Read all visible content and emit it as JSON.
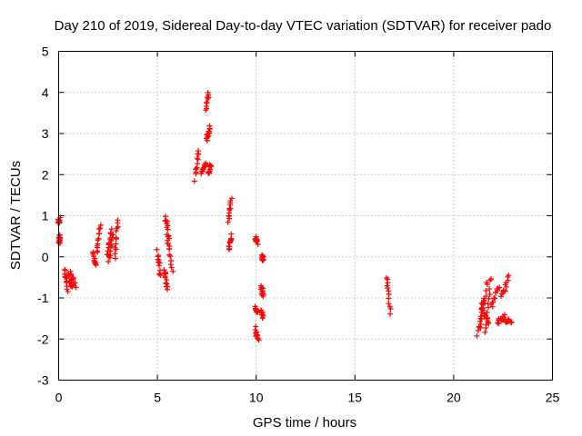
{
  "chart_data": {
    "type": "scatter",
    "title": "Day 210 of 2019, Sidereal Day-to-day VTEC variation (SDTVAR) for receiver pado",
    "xlabel": "GPS time / hours",
    "ylabel": "SDTVAR / TECUs",
    "xlim": [
      0,
      25
    ],
    "ylim": [
      -3,
      5
    ],
    "xticks": [
      0,
      5,
      10,
      15,
      20,
      25
    ],
    "yticks": [
      -3,
      -2,
      -1,
      0,
      1,
      2,
      3,
      4,
      5
    ],
    "grid": true,
    "marker": "+",
    "color": "#ff0000",
    "segments": [
      {
        "x0": 0.0,
        "x1": 0.05,
        "y0": 0.85,
        "y1": 0.9
      },
      {
        "x0": 0.02,
        "x1": 0.08,
        "y0": 0.35,
        "y1": 0.5
      },
      {
        "x0": 0.3,
        "x1": 0.45,
        "y0": -0.3,
        "y1": -0.8
      },
      {
        "x0": 0.45,
        "x1": 0.7,
        "y0": -0.45,
        "y1": -0.75
      },
      {
        "x0": 0.6,
        "x1": 0.85,
        "y0": -0.4,
        "y1": -0.7
      },
      {
        "x0": 1.75,
        "x1": 1.9,
        "y0": 0.15,
        "y1": -0.25
      },
      {
        "x0": 1.95,
        "x1": 2.1,
        "y0": 0.1,
        "y1": 0.75
      },
      {
        "x0": 2.45,
        "x1": 2.65,
        "y0": 0.0,
        "y1": 0.65
      },
      {
        "x0": 2.55,
        "x1": 2.75,
        "y0": -0.1,
        "y1": 0.55
      },
      {
        "x0": 2.85,
        "x1": 3.0,
        "y0": 0.0,
        "y1": 0.95
      },
      {
        "x0": 5.0,
        "x1": 5.15,
        "y0": 0.15,
        "y1": -0.5
      },
      {
        "x0": 5.35,
        "x1": 5.5,
        "y0": -0.3,
        "y1": -0.8
      },
      {
        "x0": 5.4,
        "x1": 5.6,
        "y0": 1.0,
        "y1": 0.1
      },
      {
        "x0": 5.5,
        "x1": 5.75,
        "y0": 0.9,
        "y1": -0.4
      },
      {
        "x0": 6.9,
        "x1": 7.1,
        "y0": 1.9,
        "y1": 2.6
      },
      {
        "x0": 7.25,
        "x1": 7.45,
        "y0": 2.05,
        "y1": 2.25
      },
      {
        "x0": 7.45,
        "x1": 7.6,
        "y0": 3.6,
        "y1": 4.0
      },
      {
        "x0": 7.5,
        "x1": 7.65,
        "y0": 2.85,
        "y1": 3.15
      },
      {
        "x0": 7.6,
        "x1": 7.7,
        "y0": 2.0,
        "y1": 2.25
      },
      {
        "x0": 8.6,
        "x1": 8.75,
        "y0": 0.9,
        "y1": 1.4
      },
      {
        "x0": 8.6,
        "x1": 8.75,
        "y0": 0.2,
        "y1": 0.5
      },
      {
        "x0": 9.95,
        "x1": 10.05,
        "y0": 0.45,
        "y1": 0.35
      },
      {
        "x0": 9.95,
        "x1": 10.1,
        "y0": -1.2,
        "y1": -1.35
      },
      {
        "x0": 9.95,
        "x1": 10.1,
        "y0": -1.75,
        "y1": -2.05
      },
      {
        "x0": 10.25,
        "x1": 10.35,
        "y0": -0.75,
        "y1": -0.95
      },
      {
        "x0": 10.25,
        "x1": 10.35,
        "y0": -1.3,
        "y1": -1.45
      },
      {
        "x0": 10.3,
        "x1": 10.35,
        "y0": -0.0,
        "y1": -0.05
      },
      {
        "x0": 16.6,
        "x1": 16.8,
        "y0": -0.5,
        "y1": -1.35
      },
      {
        "x0": 21.2,
        "x1": 21.5,
        "y0": -1.9,
        "y1": -1.0
      },
      {
        "x0": 21.35,
        "x1": 21.7,
        "y0": -1.7,
        "y1": -0.6
      },
      {
        "x0": 21.6,
        "x1": 21.9,
        "y0": -1.85,
        "y1": -0.5
      },
      {
        "x0": 21.4,
        "x1": 21.8,
        "y0": -1.3,
        "y1": -1.6
      },
      {
        "x0": 21.9,
        "x1": 22.3,
        "y0": -1.2,
        "y1": -0.7
      },
      {
        "x0": 22.2,
        "x1": 22.6,
        "y0": -1.6,
        "y1": -1.45
      },
      {
        "x0": 22.4,
        "x1": 22.8,
        "y0": -1.0,
        "y1": -0.5
      },
      {
        "x0": 22.5,
        "x1": 22.9,
        "y0": -1.5,
        "y1": -1.6
      }
    ]
  }
}
